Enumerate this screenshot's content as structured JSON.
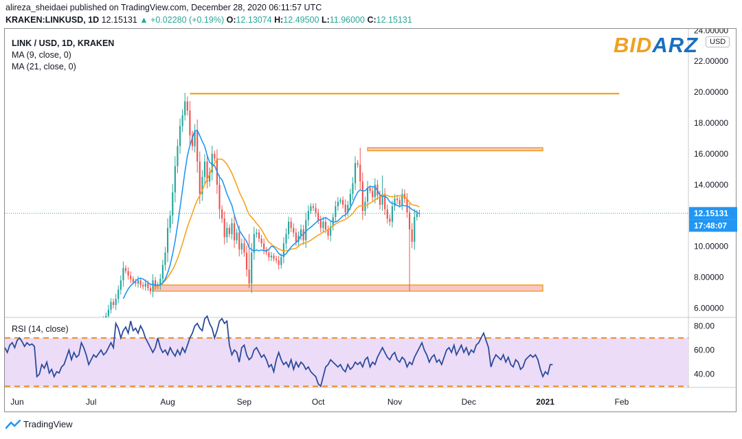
{
  "header": {
    "line1": "alireza_sheidaei published on TradingView.com, December 28, 2020 06:11:57 UTC",
    "symbol": "KRAKEN:LINKUSD, 1D",
    "last": "12.15131",
    "change": "▲ +0.02280 (+0.19%)",
    "o_label": "O:",
    "o": "12.13074",
    "h_label": "H:",
    "h": "12.49500",
    "l_label": "L:",
    "l": "11.96000",
    "c_label": "C:",
    "c": "12.15131"
  },
  "legend": {
    "title": "LINK / USD, 1D, KRAKEN",
    "ma9": "MA (9, close, 0)",
    "ma21": "MA (21, close, 0)",
    "rsi": "RSI (14, close)"
  },
  "brand": {
    "part1": "BID",
    "part2": "ARZ"
  },
  "currency_button": "USD",
  "footer": {
    "label": "TradingView"
  },
  "colors": {
    "up": "#26a69a",
    "down": "#ef5350",
    "ma9": "#2196f3",
    "ma21": "#f7a21b",
    "rsi_line": "#2a4a9a",
    "rsi_band": "#ecdcf8",
    "rsi_levels": "#f08c1a",
    "resistance_line": "#f39c12",
    "zone_fill": "#f7c6c6",
    "zone_border": "#f39c12",
    "price_tag": "#2196f3"
  },
  "chart_data": [
    {
      "type": "candlestick",
      "title": "LINK / USD, 1D, KRAKEN",
      "ylim": [
        5.4,
        24.1
      ],
      "y_ticks": [
        "6.00000",
        "8.00000",
        "10.00000",
        "14.00000",
        "16.00000",
        "18.00000",
        "20.00000",
        "22.00000"
      ],
      "y_top_partial": "24.00000",
      "x_labels": [
        "Jun",
        "Jul",
        "Aug",
        "Sep",
        "Oct",
        "Nov",
        "Dec",
        "2021",
        "Feb"
      ],
      "x_range": [
        "2020-05-27",
        "2021-02-28"
      ],
      "series_start_date": "2020-07-06",
      "close": [
        5.3,
        5.5,
        5.9,
        6.4,
        6.2,
        6.6,
        7.2,
        7.8,
        8.6,
        8.4,
        8.1,
        7.9,
        7.7,
        7.6,
        7.8,
        7.5,
        7.4,
        7.6,
        7.3,
        7.1,
        7.8,
        7.4,
        7.5,
        7.9,
        8.8,
        9.6,
        11.2,
        12.0,
        13.5,
        15.2,
        16.5,
        17.8,
        18.5,
        19.4,
        18.8,
        17.2,
        16.5,
        17.5,
        15.5,
        13.4,
        14.5,
        15.5,
        14.2,
        14.8,
        16.0,
        15.7,
        14.0,
        12.4,
        11.8,
        10.6,
        11.2,
        10.8,
        11.5,
        10.4,
        10.9,
        9.8,
        10.2,
        9.6,
        8.5,
        7.6,
        9.6,
        10.8,
        10.9,
        10.5,
        10.2,
        9.8,
        9.6,
        9.3,
        9.4,
        9.2,
        9.1,
        8.8,
        9.3,
        10.2,
        10.8,
        11.6,
        11.2,
        10.9,
        10.3,
        10.7,
        11.1,
        10.4,
        11.7,
        12.3,
        12.6,
        12.5,
        12.2,
        11.7,
        11.2,
        11.6,
        11.1,
        10.7,
        11.3,
        11.9,
        12.6,
        12.9,
        13.0,
        12.7,
        12.2,
        12.7,
        13.4,
        14.1,
        15.4,
        15.3,
        14.2,
        12.3,
        12.9,
        13.8,
        13.6,
        13.2,
        14.0,
        13.3,
        12.7,
        13.4,
        12.4,
        11.8,
        11.6,
        12.6,
        13.1,
        13.0,
        12.7,
        13.4,
        13.1,
        12.2,
        11.1,
        10.3,
        11.9,
        12.13,
        12.15
      ],
      "ma9_label": "MA (9, close, 0)",
      "ma21_label": "MA (21, close, 0)",
      "last_price": "12.15131",
      "countdown": "17:48:07",
      "annotations": {
        "resistance_line": {
          "y": 19.9,
          "from": "2020-08-10",
          "to": "2021-01-31"
        },
        "upper_zone": {
          "y_low": 16.2,
          "y_high": 16.4,
          "from": "2020-10-21",
          "to": "2020-12-31"
        },
        "lower_zone": {
          "y_low": 7.1,
          "y_high": 7.5,
          "from": "2020-07-26",
          "to": "2020-12-31"
        },
        "dotted_price_line": 12.15
      }
    },
    {
      "type": "line",
      "title": "RSI (14, close)",
      "ylim": [
        29,
        87
      ],
      "y_ticks": [
        "80.00",
        "60.00",
        "40.00"
      ],
      "levels": [
        70,
        30
      ],
      "series_start_date": "2020-05-27",
      "values": [
        62,
        58,
        64,
        66,
        62,
        68,
        70,
        67,
        63,
        66,
        64,
        65,
        63,
        38,
        40,
        48,
        45,
        50,
        41,
        44,
        38,
        42,
        41,
        46,
        48,
        54,
        60,
        52,
        58,
        54,
        56,
        66,
        62,
        56,
        48,
        52,
        56,
        54,
        57,
        60,
        56,
        58,
        62,
        66,
        62,
        82,
        78,
        70,
        76,
        79,
        74,
        84,
        76,
        78,
        74,
        80,
        76,
        70,
        66,
        62,
        58,
        62,
        70,
        62,
        58,
        60,
        56,
        62,
        58,
        55,
        60,
        56,
        62,
        58,
        64,
        70,
        74,
        80,
        82,
        78,
        76,
        86,
        88,
        82,
        78,
        70,
        76,
        84,
        86,
        82,
        84,
        64,
        56,
        60,
        58,
        50,
        62,
        64,
        56,
        52,
        54,
        60,
        62,
        58,
        54,
        56,
        52,
        46,
        48,
        42,
        52,
        58,
        52,
        48,
        50,
        46,
        52,
        44,
        50,
        46,
        50,
        48,
        44,
        46,
        42,
        40,
        38,
        32,
        30,
        38,
        46,
        48,
        52,
        50,
        48,
        46,
        48,
        44,
        42,
        48,
        44,
        46,
        50,
        48,
        50,
        46,
        52,
        54,
        46,
        50,
        48,
        54,
        58,
        62,
        58,
        54,
        52,
        56,
        58,
        52,
        50,
        54,
        52,
        46,
        50,
        48,
        54,
        58,
        62,
        66,
        60,
        56,
        50,
        54,
        56,
        50,
        52,
        48,
        54,
        60,
        62,
        58,
        64,
        56,
        60,
        64,
        58,
        62,
        56,
        60,
        58,
        64,
        66,
        70,
        74,
        68,
        62,
        46,
        52,
        56,
        54,
        52,
        56,
        50,
        54,
        48,
        46,
        52,
        50,
        44,
        46,
        52,
        54,
        56,
        54,
        56,
        52,
        44,
        38,
        42,
        40,
        48,
        48
      ]
    }
  ]
}
